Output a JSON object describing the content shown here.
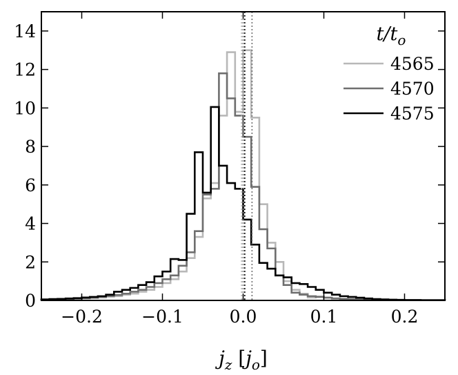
{
  "chart_data": {
    "type": "histogram",
    "xlabel": "j_z [j_o]",
    "ylabel": "",
    "title": "",
    "xlim": [
      -0.25,
      0.25
    ],
    "ylim": [
      0,
      15
    ],
    "xticks": [
      -0.2,
      -0.1,
      0.0,
      0.1,
      0.2
    ],
    "xtick_labels": [
      "−0.2",
      "−0.1",
      "0.0",
      "0.1",
      "0.2"
    ],
    "yticks": [
      0,
      2,
      4,
      6,
      8,
      10,
      12,
      14
    ],
    "ytick_labels": [
      "0",
      "2",
      "4",
      "6",
      "8",
      "10",
      "12",
      "14"
    ],
    "grid": false,
    "legend": {
      "title": "t/t_o",
      "placement": "top-right"
    },
    "bin_edges": [
      -0.25,
      -0.24,
      -0.23,
      -0.22,
      -0.21,
      -0.2,
      -0.19,
      -0.18,
      -0.17,
      -0.16,
      -0.15,
      -0.14,
      -0.13,
      -0.12,
      -0.11,
      -0.1,
      -0.09,
      -0.08,
      -0.07,
      -0.06,
      -0.05,
      -0.04,
      -0.03,
      -0.02,
      -0.01,
      0.0,
      0.01,
      0.02,
      0.03,
      0.04,
      0.05,
      0.06,
      0.07,
      0.08,
      0.09,
      0.1,
      0.11,
      0.12,
      0.13,
      0.14,
      0.15,
      0.16,
      0.17,
      0.18,
      0.19,
      0.2,
      0.21,
      0.22,
      0.23,
      0.24,
      0.25
    ],
    "series": [
      {
        "name": "4565",
        "color": "#b8b8b8",
        "values": [
          0.02,
          0.04,
          0.05,
          0.06,
          0.08,
          0.1,
          0.12,
          0.15,
          0.2,
          0.22,
          0.3,
          0.35,
          0.45,
          0.55,
          0.7,
          0.9,
          1.1,
          1.5,
          2.2,
          3.3,
          5.3,
          6.1,
          9.6,
          12.9,
          9.8,
          13.0,
          9.5,
          5.0,
          3.0,
          2.0,
          1.0,
          0.55,
          0.35,
          0.15,
          0.2,
          0.15,
          0.1,
          0.08,
          0.07,
          0.06,
          0.05,
          0.04,
          0.03,
          0.02,
          0.02,
          0.01,
          0.01,
          0.01,
          0.01,
          0.01
        ]
      },
      {
        "name": "4570",
        "color": "#6e6e6e",
        "values": [
          0.03,
          0.05,
          0.06,
          0.08,
          0.1,
          0.12,
          0.15,
          0.18,
          0.22,
          0.28,
          0.35,
          0.45,
          0.55,
          0.7,
          0.9,
          1.1,
          1.3,
          1.8,
          2.5,
          3.6,
          5.5,
          5.8,
          11.8,
          10.5,
          9.6,
          8.5,
          5.9,
          3.7,
          2.7,
          1.3,
          0.8,
          0.4,
          0.3,
          0.22,
          0.18,
          0.14,
          0.1,
          0.08,
          0.06,
          0.05,
          0.04,
          0.03,
          0.02,
          0.02,
          0.01,
          0.01,
          0.01,
          0.01,
          0.01,
          0.01
        ]
      },
      {
        "name": "4575",
        "color": "#000000",
        "values": [
          0.05,
          0.07,
          0.08,
          0.1,
          0.12,
          0.15,
          0.18,
          0.22,
          0.3,
          0.45,
          0.55,
          0.65,
          0.8,
          0.95,
          1.25,
          1.5,
          2.15,
          2.1,
          4.5,
          7.7,
          5.6,
          10.05,
          7.0,
          6.1,
          5.8,
          4.2,
          2.9,
          1.95,
          1.65,
          1.3,
          1.2,
          0.9,
          0.85,
          0.7,
          0.55,
          0.4,
          0.3,
          0.22,
          0.18,
          0.14,
          0.1,
          0.07,
          0.05,
          0.04,
          0.03,
          0.02,
          0.02,
          0.01,
          0.01,
          0.01
        ]
      }
    ],
    "vertical_lines": [
      {
        "x": -0.002,
        "color": "#b8b8b8",
        "style": "dotted"
      },
      {
        "x": 0.0,
        "color": "#6e6e6e",
        "style": "dotted"
      },
      {
        "x": 0.002,
        "color": "#000000",
        "style": "dotted"
      },
      {
        "x": 0.011,
        "color": "#6e6e6e",
        "style": "dotted"
      }
    ]
  }
}
